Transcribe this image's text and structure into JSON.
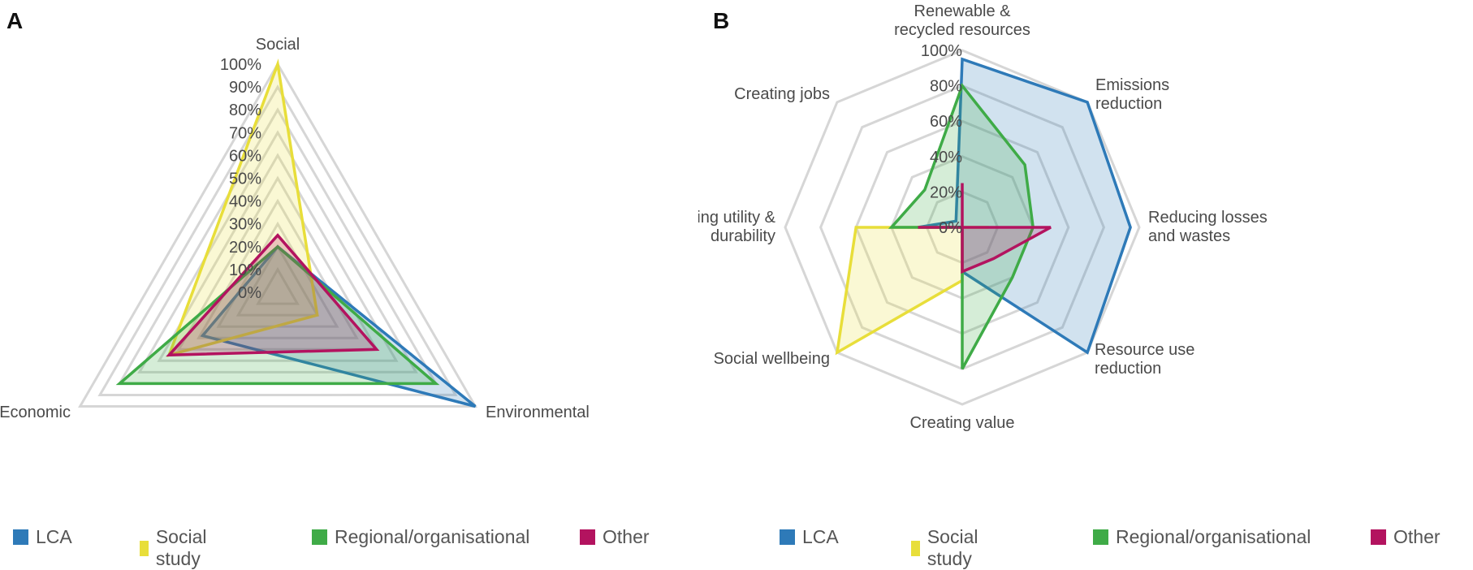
{
  "chart_data": [
    {
      "type": "radar",
      "panel_label": "A",
      "axes": [
        "Social",
        "Environmental",
        "Economic"
      ],
      "tick_labels": [
        "0%",
        "10%",
        "20%",
        "30%",
        "40%",
        "50%",
        "60%",
        "70%",
        "80%",
        "90%",
        "100%"
      ],
      "range": [
        0,
        100
      ],
      "series": [
        {
          "name": "LCA",
          "color": "#2e7ab8",
          "values": [
            20,
            100,
            38
          ]
        },
        {
          "name": "Social study",
          "color": "#e8de3a",
          "values": [
            100,
            20,
            55
          ]
        },
        {
          "name": "Regional/organisational",
          "color": "#3fab47",
          "values": [
            20,
            80,
            80
          ]
        },
        {
          "name": "Other",
          "color": "#b3135f",
          "values": [
            25,
            50,
            55
          ]
        }
      ],
      "legend": [
        {
          "label": "LCA",
          "color": "#2e7ab8"
        },
        {
          "label": "Social study",
          "color": "#e8de3a"
        },
        {
          "label": "Regional/organisational",
          "color": "#3fab47"
        },
        {
          "label": "Other",
          "color": "#b3135f"
        }
      ]
    },
    {
      "type": "radar",
      "panel_label": "B",
      "axes": [
        [
          "Renewable &",
          "recycled resources"
        ],
        [
          "Emissions",
          "reduction"
        ],
        [
          "Reducing losses",
          "and wastes"
        ],
        [
          "Resource use",
          "reduction"
        ],
        [
          "Creating value"
        ],
        [
          "Social wellbeing"
        ],
        [
          "Maximising utility &",
          "durability"
        ],
        [
          "Creating jobs"
        ]
      ],
      "tick_labels": [
        "0%",
        "20%",
        "40%",
        "60%",
        "80%",
        "100%"
      ],
      "range": [
        0,
        100
      ],
      "series": [
        {
          "name": "LCA",
          "color": "#2e7ab8",
          "values": [
            95,
            100,
            95,
            100,
            25,
            0,
            25,
            5
          ]
        },
        {
          "name": "Social study",
          "color": "#e8de3a",
          "values": [
            0,
            0,
            15,
            0,
            30,
            100,
            60,
            0
          ]
        },
        {
          "name": "Regional/organisational",
          "color": "#3fab47",
          "values": [
            80,
            50,
            40,
            40,
            80,
            0,
            40,
            30
          ]
        },
        {
          "name": "Other",
          "color": "#b3135f",
          "values": [
            25,
            0,
            50,
            25,
            25,
            0,
            25,
            0
          ]
        }
      ],
      "legend": [
        {
          "label": "LCA",
          "color": "#2e7ab8"
        },
        {
          "label": "Social study",
          "color": "#e8de3a"
        },
        {
          "label": "Regional/organisational",
          "color": "#3fab47"
        },
        {
          "label": "Other",
          "color": "#b3135f"
        }
      ]
    }
  ]
}
